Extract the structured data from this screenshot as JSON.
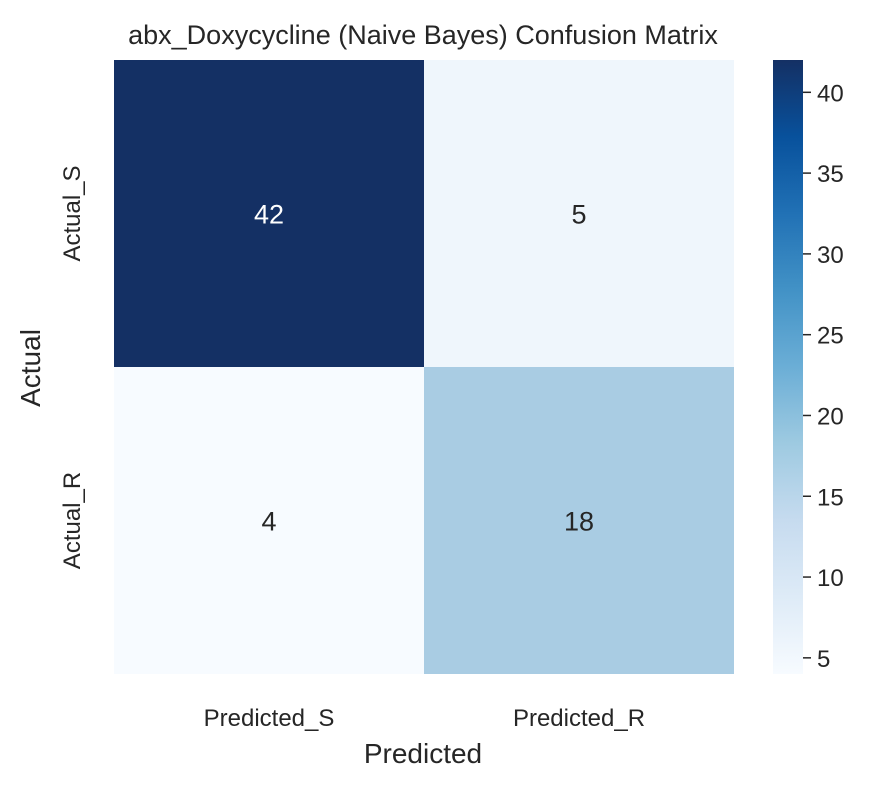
{
  "chart_data": {
    "type": "heatmap",
    "title": "abx_Doxycycline (Naive Bayes) Confusion Matrix",
    "xlabel": "Predicted",
    "ylabel": "Actual",
    "x_categories": [
      "Predicted_S",
      "Predicted_R"
    ],
    "y_categories": [
      "Actual_S",
      "Actual_R"
    ],
    "values": [
      [
        42,
        5
      ],
      [
        4,
        18
      ]
    ],
    "colormap": "Blues",
    "colorbar": {
      "min": 4,
      "max": 42,
      "ticks": [
        5,
        10,
        15,
        20,
        25,
        30,
        35,
        40
      ]
    },
    "grid": false,
    "cell_colors": [
      [
        "#143064",
        "#eff6fc"
      ],
      [
        "#f7fbff",
        "#a9cce3"
      ]
    ],
    "colormap_stops": [
      "#f7fbff",
      "#deebf7",
      "#c6dbef",
      "#9ecae1",
      "#6baed6",
      "#4292c6",
      "#2171b5",
      "#08519c",
      "#143064"
    ]
  }
}
